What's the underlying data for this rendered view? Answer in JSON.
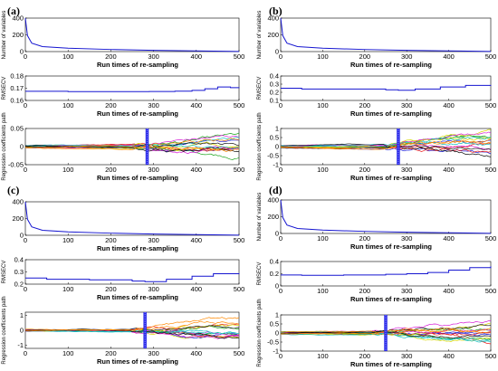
{
  "figure": {
    "panel_labels": [
      "(a)",
      "(b)",
      "(c)",
      "(d)"
    ]
  },
  "chart_data": [
    {
      "panel": "(a)",
      "type": "line",
      "subplots": [
        {
          "kind": "nvars",
          "ylabel": "Number of variables",
          "xlabel": "Run times of re-sampling",
          "xlim": [
            0,
            500
          ],
          "ylim": [
            0,
            400
          ],
          "yticks": [
            "0",
            "200",
            "400"
          ],
          "xticks": [
            "0",
            "100",
            "200",
            "300",
            "400",
            "500"
          ],
          "series": [
            {
              "x": [
                0,
                5,
                15,
                40,
                100,
                200,
                300,
                400,
                500
              ],
              "y": [
                400,
                190,
                100,
                60,
                40,
                25,
                15,
                8,
                2
              ]
            }
          ]
        },
        {
          "kind": "rmsecv",
          "ylabel": "RMSECV",
          "xlabel": "Run times of re-sampling",
          "xlim": [
            0,
            500
          ],
          "ylim": [
            0.16,
            0.18
          ],
          "yticks": [
            "0.16",
            "0.17",
            "0.18"
          ],
          "xticks": [
            "0",
            "100",
            "200",
            "300",
            "400",
            "500"
          ],
          "series": [
            {
              "x": [
                0,
                100,
                200,
                290,
                350,
                390,
                420,
                450,
                480,
                500
              ],
              "y": [
                0.1675,
                0.1672,
                0.1672,
                0.1673,
                0.1676,
                0.1682,
                0.1695,
                0.171,
                0.1705,
                0.1708
              ]
            }
          ]
        },
        {
          "kind": "coef",
          "ylabel": "Regression coefficients path",
          "xlabel": "Run times of re-sampling",
          "xlim": [
            0,
            500
          ],
          "ylim": [
            -0.05,
            0.05
          ],
          "yticks": [
            "-0.05",
            "0",
            "0.05"
          ],
          "xticks": [
            "0",
            "100",
            "200",
            "300",
            "400",
            "500"
          ],
          "marker_x": 285,
          "spread": 0.05
        }
      ]
    },
    {
      "panel": "(b)",
      "type": "line",
      "subplots": [
        {
          "kind": "nvars",
          "ylabel": "Number of variables",
          "xlabel": "Run times of re-sampling",
          "xlim": [
            0,
            500
          ],
          "ylim": [
            0,
            400
          ],
          "yticks": [
            "0",
            "200",
            "400"
          ],
          "xticks": [
            "0",
            "100",
            "200",
            "300",
            "400",
            "500"
          ],
          "series": [
            {
              "x": [
                0,
                5,
                15,
                40,
                100,
                200,
                300,
                400,
                500
              ],
              "y": [
                400,
                190,
                100,
                60,
                40,
                25,
                15,
                8,
                2
              ]
            }
          ]
        },
        {
          "kind": "rmsecv",
          "ylabel": "RMSECV",
          "xlabel": "Run times of re-sampling",
          "xlim": [
            0,
            500
          ],
          "ylim": [
            0.1,
            0.4
          ],
          "yticks": [
            "0.1",
            "0.2",
            "0.3",
            "0.4"
          ],
          "xticks": [
            "0",
            "100",
            "200",
            "300",
            "400",
            "500"
          ],
          "series": [
            {
              "x": [
                0,
                50,
                150,
                250,
                280,
                320,
                380,
                440,
                500
              ],
              "y": [
                0.25,
                0.24,
                0.24,
                0.23,
                0.225,
                0.24,
                0.265,
                0.285,
                0.29
              ]
            }
          ]
        },
        {
          "kind": "coef",
          "ylabel": "Regression coefficients path",
          "xlabel": "Run times of re-sampling",
          "xlim": [
            0,
            500
          ],
          "ylim": [
            -1,
            1
          ],
          "yticks": [
            "-1",
            "-0.5",
            "0",
            "0.5",
            "1"
          ],
          "xticks": [
            "0",
            "100",
            "200",
            "300",
            "400",
            "500"
          ],
          "marker_x": 280,
          "spread": 1.0
        }
      ]
    },
    {
      "panel": "(c)",
      "type": "line",
      "subplots": [
        {
          "kind": "nvars",
          "ylabel": "",
          "xlabel": "Run times of re-sampling",
          "xlim": [
            0,
            500
          ],
          "ylim": [
            0,
            400
          ],
          "yticks": [
            "0",
            "200",
            "400"
          ],
          "xticks": [
            "0",
            "100",
            "200",
            "300",
            "400",
            "500"
          ],
          "series": [
            {
              "x": [
                0,
                5,
                15,
                40,
                100,
                200,
                300,
                400,
                500
              ],
              "y": [
                400,
                190,
                100,
                60,
                40,
                25,
                15,
                8,
                2
              ]
            }
          ]
        },
        {
          "kind": "rmsecv",
          "ylabel": "RMSECV",
          "xlabel": "Run times of re-sampling",
          "xlim": [
            0,
            500
          ],
          "ylim": [
            0.2,
            0.4
          ],
          "yticks": [
            "0.2",
            "0.3",
            "0.4"
          ],
          "xticks": [
            "0",
            "100",
            "200",
            "300",
            "400",
            "500"
          ],
          "series": [
            {
              "x": [
                0,
                50,
                150,
                250,
                280,
                330,
                390,
                440,
                500
              ],
              "y": [
                0.25,
                0.24,
                0.235,
                0.225,
                0.22,
                0.24,
                0.265,
                0.285,
                0.29
              ]
            }
          ]
        },
        {
          "kind": "coef",
          "ylabel": "Regression coefficients path",
          "xlabel": "Run times of re-sampling",
          "xlim": [
            0,
            500
          ],
          "ylim": [
            -1.2,
            1.2
          ],
          "yticks": [
            "-1",
            "0",
            "1"
          ],
          "xticks": [
            "0",
            "100",
            "200",
            "300",
            "400",
            "500"
          ],
          "marker_x": 280,
          "spread": 1.0
        }
      ]
    },
    {
      "panel": "(d)",
      "type": "line",
      "subplots": [
        {
          "kind": "nvars",
          "ylabel": "Number of variables",
          "xlabel": "Run times of re-sampling",
          "xlim": [
            0,
            500
          ],
          "ylim": [
            0,
            400
          ],
          "yticks": [
            "0",
            "200",
            "400"
          ],
          "xticks": [
            "0",
            "100",
            "200",
            "300",
            "400",
            "500"
          ],
          "series": [
            {
              "x": [
                0,
                5,
                15,
                40,
                100,
                200,
                300,
                400,
                500
              ],
              "y": [
                400,
                190,
                100,
                60,
                40,
                25,
                15,
                8,
                2
              ]
            }
          ]
        },
        {
          "kind": "rmsecv",
          "ylabel": "RMSECV",
          "xlabel": "Run times of re-sampling",
          "xlim": [
            0,
            500
          ],
          "ylim": [
            0,
            0.4
          ],
          "yticks": [
            "0",
            "0.2",
            "0.4"
          ],
          "xticks": [
            "0",
            "100",
            "200",
            "300",
            "400",
            "500"
          ],
          "series": [
            {
              "x": [
                0,
                50,
                150,
                250,
                300,
                350,
                400,
                450,
                500
              ],
              "y": [
                0.18,
                0.175,
                0.18,
                0.19,
                0.2,
                0.22,
                0.26,
                0.3,
                0.32
              ]
            }
          ]
        },
        {
          "kind": "coef",
          "ylabel": "Regression coefficients path",
          "xlabel": "Run times of re-sampling",
          "xlim": [
            0,
            500
          ],
          "ylim": [
            -1,
            1
          ],
          "yticks": [
            "-1",
            "-0.5",
            "0",
            "0.5",
            "1"
          ],
          "xticks": [
            "0",
            "100",
            "200",
            "300",
            "400",
            "500"
          ],
          "marker_x": 250,
          "spread": 0.9
        }
      ]
    }
  ],
  "colors": {
    "main_line": "#1515d0",
    "marker": "#2a2ae8",
    "paths": [
      "#1b1bd6",
      "#e81c1c",
      "#1aa31a",
      "#d6d600",
      "#d61ad6",
      "#16c0c0",
      "#111111",
      "#ff8800"
    ]
  }
}
